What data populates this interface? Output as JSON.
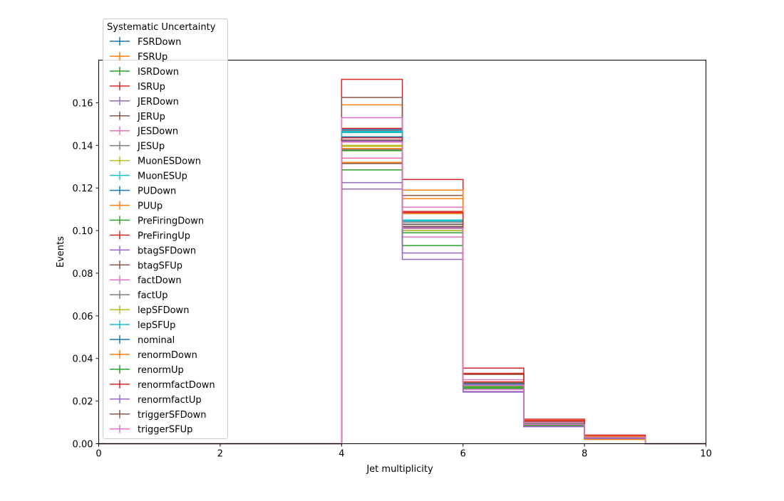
{
  "chart_data": {
    "type": "step",
    "xlabel": "Jet multiplicity",
    "ylabel": "Events",
    "xlim": [
      0,
      10
    ],
    "ylim": [
      0,
      0.18
    ],
    "xticks": [
      "0",
      "2",
      "4",
      "6",
      "8",
      "10"
    ],
    "yticks": [
      "0.00",
      "0.02",
      "0.04",
      "0.06",
      "0.08",
      "0.10",
      "0.12",
      "0.14",
      "0.16"
    ],
    "grid": false,
    "legend": {
      "title": "Systematic Uncertainty",
      "placement": "upper-left"
    },
    "bin_edges": [
      0,
      1,
      2,
      3,
      4,
      5,
      6,
      7,
      8,
      9,
      10
    ],
    "series": [
      {
        "name": "FSRDown",
        "color": "#1f77b4",
        "values": [
          0,
          0,
          0,
          0,
          0.1475,
          0.103,
          0.028,
          0.009,
          0.003,
          0
        ]
      },
      {
        "name": "FSRUp",
        "color": "#ff7f0e",
        "values": [
          0,
          0,
          0,
          0,
          0.1385,
          0.108,
          0.029,
          0.0095,
          0.002,
          0
        ]
      },
      {
        "name": "ISRDown",
        "color": "#2ca02c",
        "values": [
          0,
          0,
          0,
          0,
          0.144,
          0.102,
          0.0275,
          0.009,
          0.003,
          0
        ]
      },
      {
        "name": "ISRUp",
        "color": "#d62728",
        "values": [
          0,
          0,
          0,
          0,
          0.148,
          0.109,
          0.029,
          0.01,
          0.003,
          0
        ]
      },
      {
        "name": "JERDown",
        "color": "#9467bd",
        "values": [
          0,
          0,
          0,
          0,
          0.142,
          0.1015,
          0.027,
          0.009,
          0.003,
          0
        ]
      },
      {
        "name": "JERUp",
        "color": "#8c564b",
        "values": [
          0,
          0,
          0,
          0,
          0.1425,
          0.102,
          0.027,
          0.009,
          0.003,
          0
        ]
      },
      {
        "name": "JESDown",
        "color": "#e377c2",
        "values": [
          0,
          0,
          0,
          0,
          0.134,
          0.097,
          0.0255,
          0.0085,
          0.0025,
          0
        ]
      },
      {
        "name": "JESUp",
        "color": "#7f7f7f",
        "values": [
          0,
          0,
          0,
          0,
          0.147,
          0.104,
          0.0285,
          0.0095,
          0.003,
          0
        ]
      },
      {
        "name": "MuonESDown",
        "color": "#bcbd22",
        "values": [
          0,
          0,
          0,
          0,
          0.14,
          0.101,
          0.027,
          0.009,
          0.003,
          0
        ]
      },
      {
        "name": "MuonESUp",
        "color": "#17becf",
        "values": [
          0,
          0,
          0,
          0,
          0.146,
          0.1045,
          0.028,
          0.0092,
          0.003,
          0
        ]
      },
      {
        "name": "PUDown",
        "color": "#1f77b4",
        "values": [
          0,
          0,
          0,
          0,
          0.1415,
          0.101,
          0.027,
          0.0088,
          0.003,
          0
        ]
      },
      {
        "name": "PUUp",
        "color": "#ff7f0e",
        "values": [
          0,
          0,
          0,
          0,
          0.159,
          0.115,
          0.0325,
          0.0105,
          0.0025,
          0
        ]
      },
      {
        "name": "PreFiringDown",
        "color": "#2ca02c",
        "values": [
          0,
          0,
          0,
          0,
          0.1285,
          0.093,
          0.026,
          0.0085,
          0.0025,
          0
        ]
      },
      {
        "name": "PreFiringUp",
        "color": "#d62728",
        "values": [
          0,
          0,
          0,
          0,
          0.171,
          0.124,
          0.0355,
          0.0115,
          0.0035,
          0
        ]
      },
      {
        "name": "btagSFDown",
        "color": "#9467bd",
        "values": [
          0,
          0,
          0,
          0,
          0.1225,
          0.0895,
          0.0245,
          0.008,
          0.0025,
          0
        ]
      },
      {
        "name": "btagSFUp",
        "color": "#8c564b",
        "values": [
          0,
          0,
          0,
          0,
          0.1625,
          0.1165,
          0.0325,
          0.0105,
          0.004,
          0
        ]
      },
      {
        "name": "factDown",
        "color": "#e377c2",
        "values": [
          0,
          0,
          0,
          0,
          0.153,
          0.111,
          0.03,
          0.01,
          0.003,
          0
        ]
      },
      {
        "name": "factUp",
        "color": "#7f7f7f",
        "values": [
          0,
          0,
          0,
          0,
          0.138,
          0.1,
          0.0268,
          0.0088,
          0.003,
          0
        ]
      },
      {
        "name": "lepSFDown",
        "color": "#bcbd22",
        "values": [
          0,
          0,
          0,
          0,
          0.1395,
          0.1,
          0.0268,
          0.0088,
          0.003,
          0
        ]
      },
      {
        "name": "lepSFUp",
        "color": "#17becf",
        "values": [
          0,
          0,
          0,
          0,
          0.1465,
          0.105,
          0.0285,
          0.0093,
          0.003,
          0
        ]
      },
      {
        "name": "nominal",
        "color": "#1f77b4",
        "values": [
          0,
          0,
          0,
          0,
          0.144,
          0.103,
          0.028,
          0.009,
          0.003,
          0
        ]
      },
      {
        "name": "renormDown",
        "color": "#ff7f0e",
        "values": [
          0,
          0,
          0,
          0,
          0.132,
          0.119,
          0.033,
          0.011,
          0.0035,
          0
        ]
      },
      {
        "name": "renormUp",
        "color": "#2ca02c",
        "values": [
          0,
          0,
          0,
          0,
          0.1375,
          0.099,
          0.0265,
          0.0087,
          0.003,
          0
        ]
      },
      {
        "name": "renormfactDown",
        "color": "#d62728",
        "values": [
          0,
          0,
          0,
          0,
          0.1435,
          0.1085,
          0.033,
          0.0108,
          0.004,
          0
        ]
      },
      {
        "name": "renormfactUp",
        "color": "#9467bd",
        "values": [
          0,
          0,
          0,
          0,
          0.1195,
          0.0865,
          0.0242,
          0.008,
          0.0025,
          0
        ]
      },
      {
        "name": "triggerSFDown",
        "color": "#8c564b",
        "values": [
          0,
          0,
          0,
          0,
          0.1315,
          0.103,
          0.0285,
          0.0092,
          0.003,
          0
        ]
      },
      {
        "name": "triggerSFUp",
        "color": "#e377c2",
        "values": [
          0,
          0,
          0,
          0,
          0.1415,
          0.101,
          0.0275,
          0.009,
          0.003,
          0
        ]
      }
    ]
  }
}
